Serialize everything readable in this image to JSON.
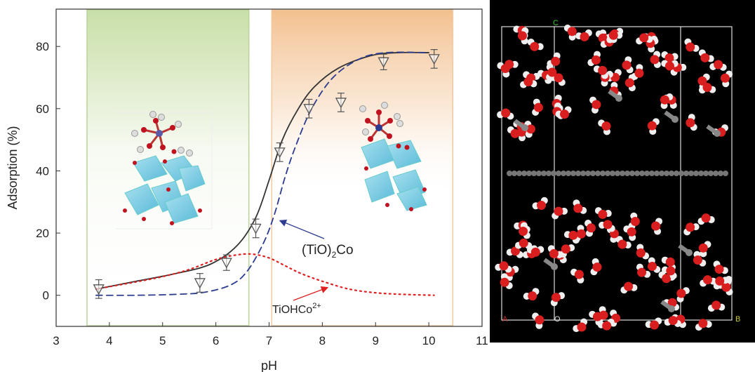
{
  "chart_data": {
    "type": "line",
    "xlabel": "pH",
    "ylabel": "Adsorption (%)",
    "xlim": [
      3,
      11
    ],
    "ylim": [
      -10,
      92
    ],
    "xticks": [
      3,
      4,
      5,
      6,
      7,
      8,
      9,
      10,
      11
    ],
    "yticks": [
      0,
      20,
      40,
      60,
      80
    ],
    "grid": false,
    "shaded_regions": [
      {
        "x_range": [
          3.58,
          6.62
        ],
        "color": "#c9dfa8"
      },
      {
        "x_range": [
          7.05,
          10.45
        ],
        "color": "#f3c08f"
      }
    ],
    "series": [
      {
        "style": "solid",
        "color": "#333333",
        "x": [
          3.75,
          4.5,
          5.25,
          5.9,
          6.4,
          6.75,
          7.0,
          7.25,
          7.55,
          7.85,
          8.3,
          8.9,
          9.4,
          10.0
        ],
        "values": [
          2,
          4.5,
          7,
          10,
          16,
          25,
          37,
          50,
          60,
          67,
          73,
          77,
          78,
          78
        ]
      },
      {
        "style": "dashed",
        "color": "#2b3b8f",
        "x": [
          3.75,
          4.5,
          5.25,
          5.8,
          6.3,
          6.6,
          6.9,
          7.1,
          7.3,
          7.5,
          7.8,
          8.2,
          8.7,
          9.2,
          10.0
        ],
        "values": [
          0,
          0,
          0.3,
          1,
          3.5,
          8,
          17,
          26,
          38,
          48,
          60,
          70,
          76,
          78,
          78
        ]
      },
      {
        "style": "dotted",
        "color": "#e02020",
        "x": [
          3.75,
          4.5,
          5.0,
          5.5,
          6.0,
          6.4,
          6.7,
          7.0,
          7.3,
          7.6,
          8.0,
          8.5,
          9.0,
          9.5,
          10.1
        ],
        "values": [
          2,
          4.3,
          6,
          8.3,
          11.5,
          13,
          13.2,
          12,
          9.5,
          7,
          4.5,
          2,
          0.8,
          0.3,
          0
        ]
      }
    ],
    "experimental_points": {
      "marker": "inverted-triangle",
      "x": [
        3.8,
        5.7,
        6.2,
        6.75,
        7.2,
        7.75,
        8.35,
        9.15,
        10.1
      ],
      "values": [
        2,
        4,
        10.5,
        21.5,
        46,
        60,
        62,
        75,
        76
      ],
      "errors": [
        3,
        3,
        2.5,
        3,
        3,
        3,
        3,
        2.5,
        3
      ]
    },
    "annotations": [
      {
        "text": "(TiO)",
        "sub": "2",
        "suffix": "Co",
        "arrow_to": [
          7.15,
          24
        ]
      },
      {
        "text": "TiOHCo",
        "sup": "2+",
        "arrow_to": [
          8.1,
          2.5
        ]
      }
    ]
  },
  "simulation_panel": {
    "background": "#000000",
    "corner_labels": {
      "top": "C",
      "bottom_left": "A",
      "bottom_origin": "O",
      "bottom_right": "B"
    }
  }
}
